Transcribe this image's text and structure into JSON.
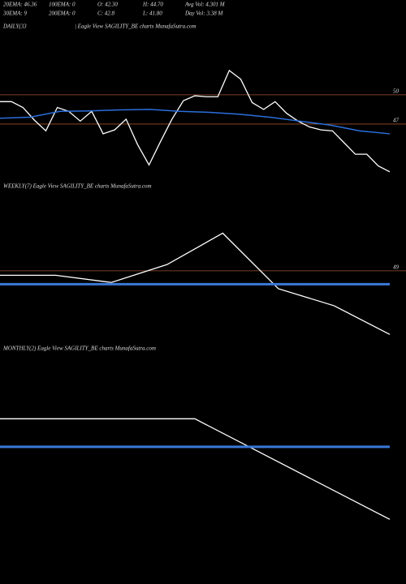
{
  "header": {
    "line1": [
      "20EMA: 46.36",
      "100EMA: 0",
      "O: 42.30",
      "H: 44.70",
      "Avg Vol: 4.301 M"
    ],
    "line2": [
      "30EMA: 9",
      "200EMA: 0",
      "C: 42.8",
      "L: 41.80",
      "Day Vol: 3.38 M"
    ]
  },
  "chart_data": [
    {
      "type": "line",
      "title": "DAILY(33",
      "subtitle": "| Eagle  View  SAGILITY_BE charts MunafaSutra.com",
      "ylim": [
        41,
        56.4
      ],
      "yticks": [
        47,
        50
      ],
      "tick_color": "#a0522d",
      "series": [
        {
          "color": "#ffffff",
          "width": 1.3,
          "values": [
            49.3,
            49.3,
            48.7,
            47.4,
            46.3,
            48.7,
            48.3,
            47.3,
            48.3,
            46.0,
            46.4,
            47.5,
            44.9,
            42.8,
            45.2,
            47.5,
            49.4,
            49.9,
            49.8,
            49.8,
            52.5,
            51.6,
            49.2,
            48.5,
            49.3,
            48.1,
            47.3,
            46.7,
            46.4,
            46.3,
            45.1,
            43.9,
            43.9,
            42.7,
            42.1
          ]
        },
        {
          "color": "#2a6fdc",
          "width": 1.5,
          "values": [
            47.6,
            47.7,
            48.3,
            48.35,
            48.45,
            48.5,
            48.3,
            48.2,
            48.0,
            47.7,
            47.3,
            46.9,
            46.3,
            46.0
          ]
        }
      ]
    },
    {
      "type": "line",
      "title": "WEEKLY(7) Eagle  View  SAGILITY_BE charts MunafaSutra.com",
      "ylim": [
        41.2,
        57.5
      ],
      "yticks": [
        49
      ],
      "tick_color": "#a0522d",
      "series": [
        {
          "color": "#ffffff",
          "width": 1.3,
          "values": [
            48.5,
            48.5,
            47.7,
            49.7,
            53.2,
            47.0,
            45.1,
            41.9
          ]
        },
        {
          "color": "#3b78d8",
          "width": 3,
          "values": [
            47.5,
            47.5
          ]
        }
      ]
    },
    {
      "type": "line",
      "title": "MONTHLY(2) Eagle  View  SAGILITY_BE charts MunafaSutra.com",
      "ylim": [
        38.3,
        55.5
      ],
      "yticks": [],
      "series": [
        {
          "color": "#ffffff",
          "width": 1.3,
          "values": [
            50,
            50,
            42.1
          ]
        },
        {
          "color": "#3b78d8",
          "width": 3,
          "values": [
            47.8,
            47.8
          ]
        }
      ]
    }
  ]
}
